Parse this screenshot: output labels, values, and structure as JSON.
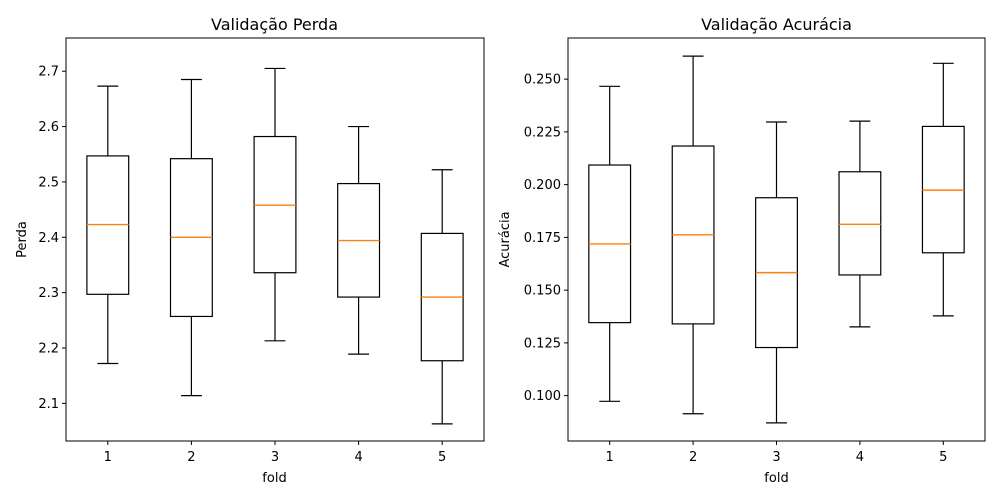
{
  "chart_data": [
    {
      "type": "boxplot",
      "title": "Validação Perda",
      "xlabel": "fold",
      "ylabel": "Perda",
      "categories": [
        "1",
        "2",
        "3",
        "4",
        "5"
      ],
      "ylim": [
        2.032,
        2.76
      ],
      "yticks": [
        2.1,
        2.2,
        2.3,
        2.4,
        2.5,
        2.6,
        2.7
      ],
      "ytick_labels": [
        "2.1",
        "2.2",
        "2.3",
        "2.4",
        "2.5",
        "2.6",
        "2.7"
      ],
      "grid": false,
      "boxes": [
        {
          "whisker_low": 2.172,
          "q1": 2.297,
          "median": 2.423,
          "q3": 2.547,
          "whisker_high": 2.673
        },
        {
          "whisker_low": 2.114,
          "q1": 2.257,
          "median": 2.4,
          "q3": 2.542,
          "whisker_high": 2.685
        },
        {
          "whisker_low": 2.213,
          "q1": 2.336,
          "median": 2.458,
          "q3": 2.582,
          "whisker_high": 2.705
        },
        {
          "whisker_low": 2.189,
          "q1": 2.292,
          "median": 2.394,
          "q3": 2.497,
          "whisker_high": 2.6
        },
        {
          "whisker_low": 2.063,
          "q1": 2.177,
          "median": 2.292,
          "q3": 2.407,
          "whisker_high": 2.522
        }
      ]
    },
    {
      "type": "boxplot",
      "title": "Validação Acurácia",
      "xlabel": "fold",
      "ylabel": "Acurácia",
      "categories": [
        "1",
        "2",
        "3",
        "4",
        "5"
      ],
      "ylim": [
        0.0785,
        0.2695
      ],
      "yticks": [
        0.1,
        0.125,
        0.15,
        0.175,
        0.2,
        0.225,
        0.25
      ],
      "ytick_labels": [
        "0.100",
        "0.125",
        "0.150",
        "0.175",
        "0.200",
        "0.225",
        "0.250"
      ],
      "grid": false,
      "boxes": [
        {
          "whisker_low": 0.0973,
          "q1": 0.1346,
          "median": 0.1719,
          "q3": 0.2093,
          "whisker_high": 0.2466
        },
        {
          "whisker_low": 0.0914,
          "q1": 0.134,
          "median": 0.1762,
          "q3": 0.2183,
          "whisker_high": 0.2609
        },
        {
          "whisker_low": 0.0871,
          "q1": 0.1228,
          "median": 0.1583,
          "q3": 0.1938,
          "whisker_high": 0.2297
        },
        {
          "whisker_low": 0.1326,
          "q1": 0.1572,
          "median": 0.1812,
          "q3": 0.2061,
          "whisker_high": 0.2301
        },
        {
          "whisker_low": 0.1378,
          "q1": 0.1677,
          "median": 0.1974,
          "q3": 0.2276,
          "whisker_high": 0.2575
        }
      ]
    }
  ],
  "colors": {
    "box": "#000000",
    "median": "#ff7f0e",
    "axes": "#000000",
    "background": "#ffffff"
  }
}
